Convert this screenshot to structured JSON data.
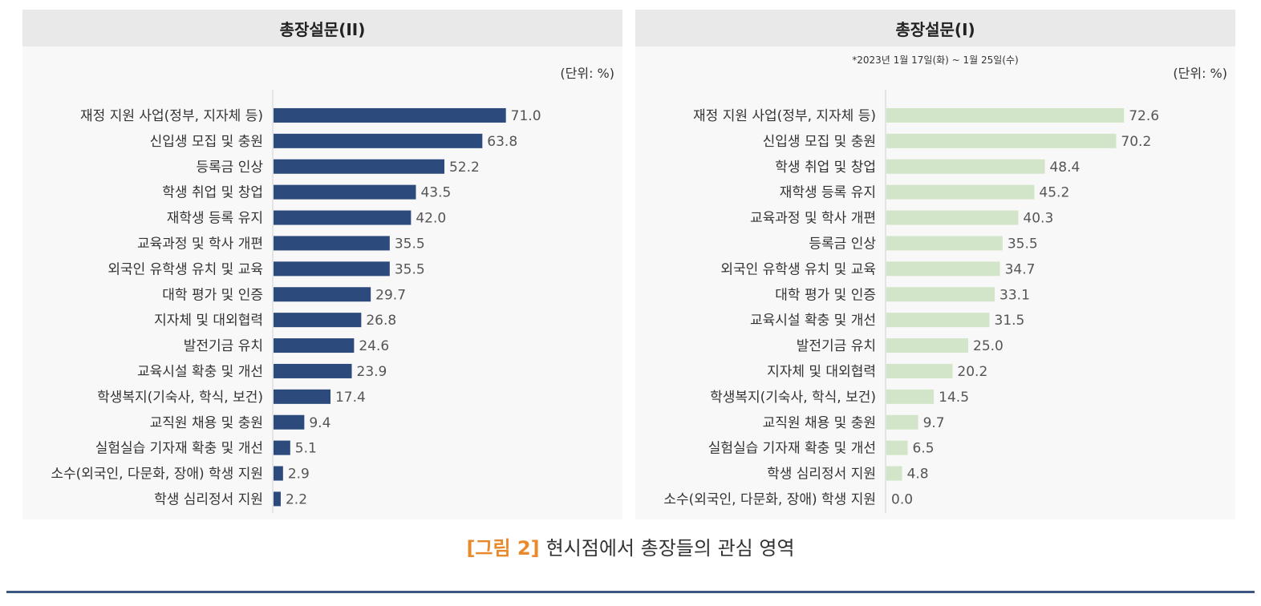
{
  "caption": {
    "figure_no": "[그림 2]",
    "text": "현시점에서 총장들의 관심 영역"
  },
  "colors": {
    "left_bar": "#2c4a7c",
    "right_bar": "#d3e5c8",
    "caption_accent": "#e8892c"
  },
  "chart_data": [
    {
      "type": "bar",
      "orientation": "horizontal",
      "title": "총장설문(II)",
      "unit_label": "(단위: %)",
      "categories": [
        "재정 지원 사업(정부, 지자체 등)",
        "신입생 모집 및 충원",
        "등록금 인상",
        "학생 취업 및 창업",
        "재학생 등록 유지",
        "교육과정 및 학사 개편",
        "외국인 유학생 유치 및 교육",
        "대학 평가 및 인증",
        "지자체 및 대외협력",
        "발전기금 유치",
        "교육시설 확충 및 개선",
        "학생복지(기숙사, 학식, 보건)",
        "교직원 채용 및 충원",
        "실험실습 기자재 확충 및 개선",
        "소수(외국인, 다문화, 장애) 학생 지원",
        "학생 심리정서 지원"
      ],
      "values": [
        71.0,
        63.8,
        52.2,
        43.5,
        42.0,
        35.5,
        35.5,
        29.7,
        26.8,
        24.6,
        23.9,
        17.4,
        9.4,
        5.1,
        2.9,
        2.2
      ],
      "value_labels": [
        "71.0",
        "63.8",
        "52.2",
        "43.5",
        "42.0",
        "35.5",
        "35.5",
        "29.7",
        "26.8",
        "24.6",
        "23.9",
        "17.4",
        "9.4",
        "5.1",
        "2.9",
        "2.2"
      ],
      "bar_color": "#2c4a7c"
    },
    {
      "type": "bar",
      "orientation": "horizontal",
      "title": "총장설문(Ⅰ)",
      "subtitle": "*2023년 1월 17일(화) ~ 1월 25일(수)",
      "unit_label": "(단위: %)",
      "categories": [
        "재정 지원 사업(정부, 지자체 등)",
        "신입생 모집 및 충원",
        "학생 취업 및 창업",
        "재학생 등록 유지",
        "교육과정 및 학사 개편",
        "등록금 인상",
        "외국인 유학생 유치 및 교육",
        "대학 평가 및 인증",
        "교육시설 확충 및 개선",
        "발전기금 유치",
        "지자체 및 대외협력",
        "학생복지(기숙사, 학식, 보건)",
        "교직원 채용 및 충원",
        "실험실습 기자재 확충 및 개선",
        "학생 심리정서 지원",
        "소수(외국인, 다문화, 장애) 학생 지원"
      ],
      "values": [
        72.6,
        70.2,
        48.4,
        45.2,
        40.3,
        35.5,
        34.7,
        33.1,
        31.5,
        25.0,
        20.2,
        14.5,
        9.7,
        6.5,
        4.8,
        0.0
      ],
      "value_labels": [
        "72.6",
        "70.2",
        "48.4",
        "45.2",
        "40.3",
        "35.5",
        "34.7",
        "33.1",
        "31.5",
        "25.0",
        "20.2",
        "14.5",
        "9.7",
        "6.5",
        "4.8",
        "0.0"
      ],
      "bar_color": "#d3e5c8"
    }
  ]
}
